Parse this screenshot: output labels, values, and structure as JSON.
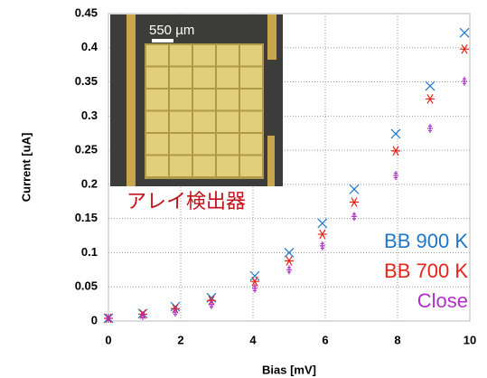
{
  "chart_data": {
    "type": "scatter",
    "y_label": "Current [uA]",
    "x_label": "Bias [mV]",
    "inset_scale_label": "550 µm",
    "inset_caption": "アレイ検出器",
    "x": [
      0,
      0.95,
      1.85,
      2.85,
      4.05,
      5,
      5.92,
      6.8,
      7.95,
      8.9,
      9.85
    ],
    "series": [
      {
        "name": "BB 900 K",
        "color": "#1f77c9",
        "marker": "x",
        "values": [
          0.004,
          0.011,
          0.021,
          0.034,
          0.066,
          0.1,
          0.143,
          0.193,
          0.274,
          0.344,
          0.422
        ]
      },
      {
        "name": "BB 700 K",
        "color": "#e8231a",
        "marker": "asterisk",
        "values": [
          0.004,
          0.01,
          0.018,
          0.03,
          0.058,
          0.088,
          0.127,
          0.174,
          0.249,
          0.325,
          0.398
        ]
      },
      {
        "name": "Close",
        "color": "#b030c8",
        "marker": "plus",
        "values": [
          0.004,
          0.008,
          0.013,
          0.024,
          0.048,
          0.075,
          0.11,
          0.153,
          0.213,
          0.282,
          0.351
        ]
      }
    ],
    "xlim": [
      0,
      10
    ],
    "xticks": [
      0,
      2,
      4,
      6,
      8,
      10
    ],
    "ylim": [
      0,
      0.45
    ],
    "yticks": [
      0,
      0.05,
      0.1,
      0.15,
      0.2,
      0.25,
      0.3,
      0.35,
      0.4,
      0.45
    ],
    "grid": true
  }
}
